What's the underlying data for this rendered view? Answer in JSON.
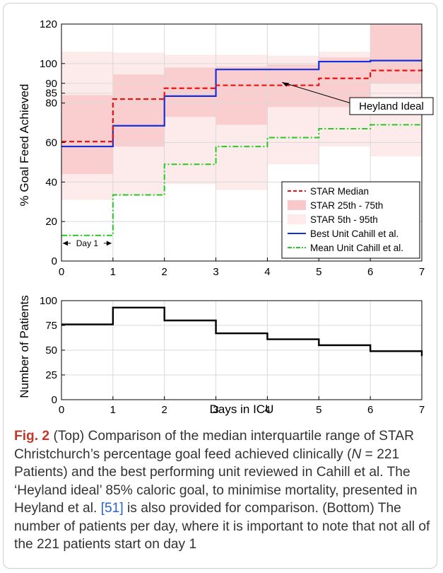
{
  "colors": {
    "median": "#ee1111",
    "iqr_band": "#f9c9c9",
    "range_band": "#fdeaea",
    "best_unit": "#1530d8",
    "mean_unit": "#22cc22",
    "patients": "#000000",
    "caption_label": "#c0392b",
    "caption_link": "#2a62c8"
  },
  "chart_data": [
    {
      "type": "line",
      "xlim": [
        0,
        7
      ],
      "ylim": [
        0,
        120
      ],
      "xticks": [
        "0",
        "1",
        "2",
        "3",
        "4",
        "5",
        "6",
        "7"
      ],
      "yticks": [
        "0",
        "20",
        "40",
        "60",
        "80",
        "85",
        "90",
        "100",
        "120"
      ],
      "ylabel": "% Goal Feed Achieved",
      "xlabel": "",
      "grid": true,
      "legend_position": "bottom-right",
      "step": true,
      "days": [
        0,
        1,
        2,
        3,
        4,
        5,
        6
      ],
      "series": [
        {
          "name": "STAR Median",
          "style": "dashed",
          "values": [
            60.5,
            82,
            87.5,
            89,
            89,
            92.5,
            96.5
          ],
          "end_value": 98.5
        },
        {
          "name": "STAR 25th - 75th",
          "style": "band",
          "lower": [
            44,
            58,
            73,
            69,
            78,
            78,
            90
          ],
          "upper": [
            84,
            94.5,
            98,
            98.5,
            99.5,
            103,
            120
          ]
        },
        {
          "name": "STAR 5th - 95th",
          "style": "band",
          "lower": [
            31,
            33,
            39,
            36,
            49,
            58,
            53
          ],
          "upper": [
            106,
            105.5,
            104.5,
            104.5,
            104,
            106,
            120
          ]
        },
        {
          "name": "Best Unit Cahill et al.",
          "style": "solid",
          "values": [
            58,
            68.5,
            83.5,
            97,
            97,
            101,
            101.5
          ]
        },
        {
          "name": "Mean Unit Cahill et al.",
          "style": "dashdot",
          "values": [
            13,
            33.5,
            49,
            58,
            62.5,
            67,
            69
          ]
        }
      ],
      "annotations": [
        {
          "text": "Heyland Ideal",
          "target_x": 5.5,
          "target_y": 85
        },
        {
          "text": "Day 1",
          "from_x": 0,
          "to_x": 1,
          "y": 9
        }
      ]
    },
    {
      "type": "line",
      "step": true,
      "xlim": [
        0,
        7
      ],
      "ylim": [
        0,
        100
      ],
      "xticks": [
        "0",
        "1",
        "2",
        "3",
        "4",
        "5",
        "6",
        "7"
      ],
      "yticks": [
        "0",
        "25",
        "50",
        "75",
        "100"
      ],
      "xlabel": "Days in ICU",
      "ylabel": "Number of Patients",
      "grid": true,
      "days": [
        0,
        1,
        2,
        3,
        4,
        5,
        6
      ],
      "series": [
        {
          "name": "",
          "values": [
            76,
            93,
            80,
            67,
            61,
            55,
            49
          ],
          "end_value": 44
        }
      ]
    }
  ],
  "caption": {
    "label": "Fig. 2",
    "t1": " (Top) Comparison of the median interquartile range of STAR Christchurch’s percentage goal feed achieved clinically (",
    "n_var": "N",
    "t2": " = 221 Patients) and the best performing unit reviewed in Cahill et al. The ‘Heyland ideal’ 85% caloric goal, to minimise mortality, presented in Heyland et al. ",
    "ref": "[51]",
    "t3": " is also provided for comparison. (Bottom) The number of patients per day, where it is important to note that not all of the 221 patients start on day 1"
  }
}
